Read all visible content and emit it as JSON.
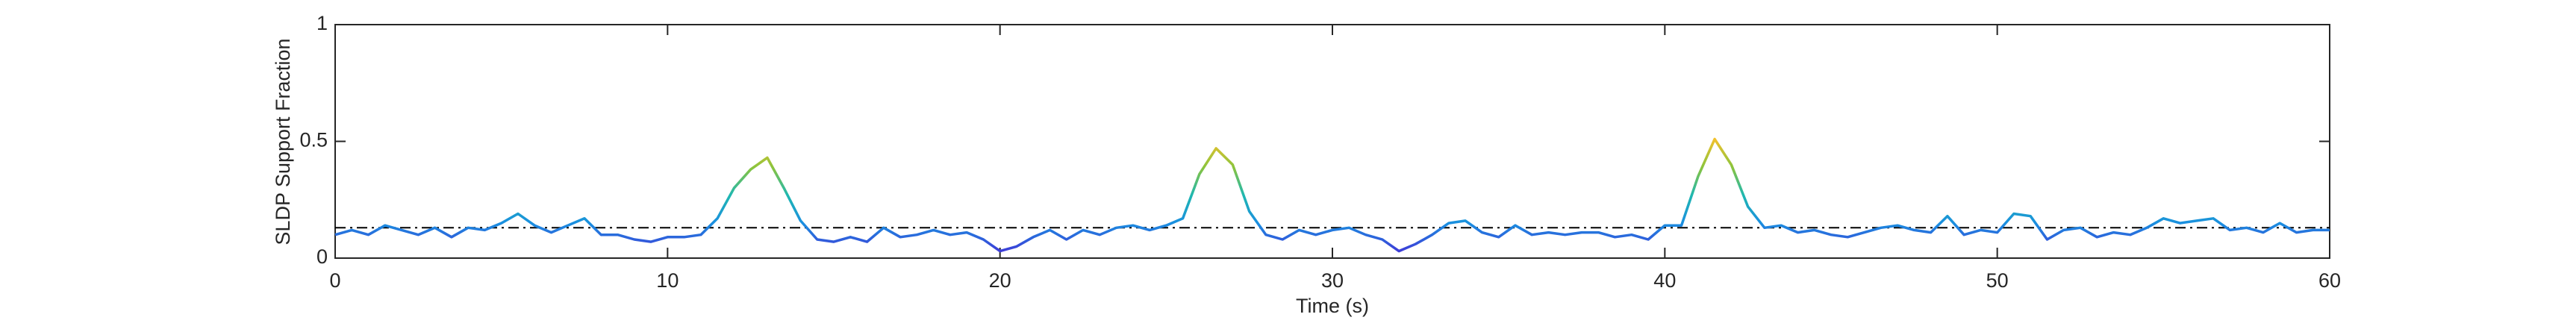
{
  "chart_data": {
    "type": "line",
    "xlabel": "Time (s)",
    "ylabel": "SLDP Support Fraction",
    "x": [
      0,
      0.5,
      1,
      1.5,
      2,
      2.5,
      3,
      3.5,
      4,
      4.5,
      5,
      5.5,
      6,
      6.5,
      7,
      7.5,
      8,
      8.5,
      9,
      9.5,
      10,
      10.5,
      11,
      11.5,
      12,
      12.5,
      13,
      13.5,
      14,
      14.5,
      15,
      15.5,
      16,
      16.5,
      17,
      17.5,
      18,
      18.5,
      19,
      19.5,
      20,
      20.5,
      21,
      21.5,
      22,
      22.5,
      23,
      23.5,
      24,
      24.5,
      25,
      25.5,
      26,
      26.5,
      27,
      27.5,
      28,
      28.5,
      29,
      29.5,
      30,
      30.5,
      31,
      31.5,
      32,
      32.5,
      33,
      33.5,
      34,
      34.5,
      35,
      35.5,
      36,
      36.5,
      37,
      37.5,
      38,
      38.5,
      39,
      39.5,
      40,
      40.5,
      41,
      41.5,
      42,
      42.5,
      43,
      43.5,
      44,
      44.5,
      45,
      45.5,
      46,
      46.5,
      47,
      47.5,
      48,
      48.5,
      49,
      49.5,
      50,
      50.5,
      51,
      51.5,
      52,
      52.5,
      53,
      53.5,
      54,
      54.5,
      55,
      55.5,
      56,
      56.5,
      57,
      57.5,
      58,
      58.5,
      59,
      59.5,
      60
    ],
    "values": [
      0.1,
      0.12,
      0.1,
      0.14,
      0.12,
      0.1,
      0.13,
      0.09,
      0.13,
      0.12,
      0.15,
      0.19,
      0.14,
      0.11,
      0.14,
      0.17,
      0.1,
      0.1,
      0.08,
      0.07,
      0.09,
      0.09,
      0.1,
      0.17,
      0.3,
      0.38,
      0.43,
      0.3,
      0.16,
      0.08,
      0.07,
      0.09,
      0.07,
      0.13,
      0.09,
      0.1,
      0.12,
      0.1,
      0.11,
      0.08,
      0.03,
      0.05,
      0.09,
      0.12,
      0.08,
      0.12,
      0.1,
      0.13,
      0.14,
      0.12,
      0.14,
      0.17,
      0.36,
      0.47,
      0.4,
      0.2,
      0.1,
      0.08,
      0.12,
      0.1,
      0.12,
      0.13,
      0.1,
      0.08,
      0.03,
      0.06,
      0.1,
      0.15,
      0.16,
      0.11,
      0.09,
      0.14,
      0.1,
      0.11,
      0.1,
      0.11,
      0.11,
      0.09,
      0.1,
      0.08,
      0.14,
      0.14,
      0.35,
      0.51,
      0.4,
      0.22,
      0.13,
      0.14,
      0.11,
      0.12,
      0.1,
      0.09,
      0.11,
      0.13,
      0.14,
      0.12,
      0.11,
      0.18,
      0.1,
      0.12,
      0.11,
      0.19,
      0.18,
      0.08,
      0.12,
      0.13,
      0.09,
      0.11,
      0.1,
      0.13,
      0.17,
      0.15,
      0.16,
      0.17,
      0.12,
      0.13,
      0.11,
      0.15,
      0.11,
      0.12,
      0.12
    ],
    "colormap": [
      "#3d3dd8",
      "#1a8fe0",
      "#1fb8b0",
      "#8cc43c",
      "#f2c12c"
    ],
    "threshold": 0.13,
    "threshold_color": "#000000",
    "xlim": [
      0,
      60
    ],
    "xticks": [
      0,
      10,
      20,
      30,
      40,
      50,
      60
    ],
    "ylim": [
      0,
      1
    ],
    "yticks": [
      0,
      0.5,
      1
    ]
  }
}
